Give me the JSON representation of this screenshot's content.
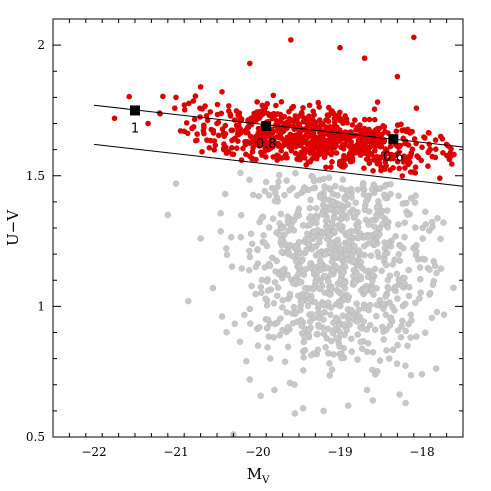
{
  "chart_data": {
    "type": "scatter",
    "xlabel": "M",
    "xlabel_sub": "V",
    "ylabel": "U−V",
    "xlim": [
      -22.5,
      -17.5
    ],
    "ylim": [
      0.5,
      2.1
    ],
    "x_ticks": [
      -22,
      -21,
      -20,
      -19,
      -18
    ],
    "x_tick_labels": [
      "−22",
      "−21",
      "−20",
      "−19",
      "−18"
    ],
    "y_ticks": [
      0.5,
      1,
      1.5,
      2
    ],
    "y_tick_labels": [
      "0.5",
      "1",
      "1.5",
      "2"
    ],
    "lines": [
      {
        "x": [
          -22.0,
          -17.5
        ],
        "y": [
          1.77,
          1.61
        ]
      },
      {
        "x": [
          -22.0,
          -17.5
        ],
        "y": [
          1.62,
          1.46
        ]
      }
    ],
    "markers": [
      {
        "x": -21.5,
        "y": 1.75,
        "label": "1"
      },
      {
        "x": -19.9,
        "y": 1.69,
        "label": "0.8"
      },
      {
        "x": -18.35,
        "y": 1.64,
        "label": "0.6"
      }
    ],
    "series": [
      {
        "color": "#dd0000",
        "region": {
          "x_range": [
            -21.6,
            -17.6
          ],
          "upper_line_offset": [
            -0.12,
            0.12
          ]
        },
        "extra_points": [
          [
            -21.75,
            1.72
          ],
          [
            -21.2,
            1.74
          ],
          [
            -21.0,
            1.8
          ],
          [
            -20.9,
            1.67
          ],
          [
            -20.7,
            1.84
          ],
          [
            -20.5,
            1.7
          ],
          [
            -20.1,
            1.93
          ],
          [
            -19.6,
            2.02
          ],
          [
            -19.0,
            1.99
          ],
          [
            -18.7,
            1.95
          ],
          [
            -18.1,
            2.03
          ],
          [
            -18.3,
            1.88
          ],
          [
            -20.2,
            1.56
          ],
          [
            -18.5,
            1.52
          ],
          [
            -17.7,
            1.62
          ],
          [
            -20.4,
            1.6
          ]
        ]
      },
      {
        "color": "#c8c8c8",
        "region": {
          "x_range": [
            -21.3,
            -17.6
          ],
          "y_range": [
            0.6,
            1.5
          ]
        },
        "extra_points": [
          [
            -21.0,
            1.47
          ],
          [
            -20.85,
            1.02
          ],
          [
            -20.55,
            1.07
          ],
          [
            -20.3,
            0.51
          ],
          [
            -20.1,
            0.72
          ],
          [
            -19.85,
            0.8
          ],
          [
            -19.55,
            0.59
          ],
          [
            -19.45,
            0.61
          ],
          [
            -19.2,
            0.6
          ],
          [
            -18.9,
            0.62
          ],
          [
            -18.6,
            0.64
          ],
          [
            -18.2,
            0.63
          ],
          [
            -19.8,
            0.68
          ],
          [
            -20.7,
            1.26
          ],
          [
            -20.4,
            1.43
          ],
          [
            -20.0,
            0.85
          ],
          [
            -21.1,
            1.35
          ],
          [
            -18.0,
            0.74
          ],
          [
            -17.9,
            1.05
          ],
          [
            -18.4,
            0.8
          ]
        ]
      }
    ]
  }
}
